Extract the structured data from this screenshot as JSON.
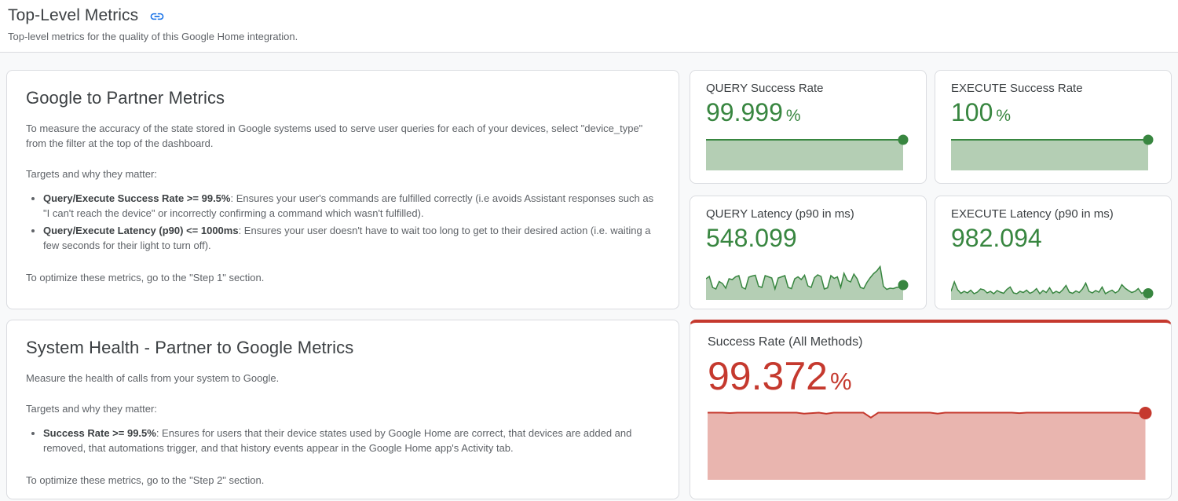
{
  "page": {
    "title": "Top-Level Metrics",
    "subtitle": "Top-level metrics for the quality of this Google Home integration."
  },
  "colors": {
    "green": "#388640",
    "green_fill": "#b4ceb4",
    "red": "#c5392e",
    "red_fill": "#e9b5af",
    "link_blue": "#1a73e8",
    "card_border": "#dadce0",
    "page_background": "#f8f9fa",
    "heading_text": "#3c4043",
    "body_text": "#5f6368"
  },
  "cards": {
    "google_to_partner": {
      "title": "Google to Partner Metrics",
      "intro": "To measure the accuracy of the state stored in Google systems used to serve user queries for each of your devices, select \"device_type\" from the filter at the top of the dashboard.",
      "targets_label": "Targets and why they matter:",
      "bullets": [
        {
          "lead": "Query/Execute Success Rate >= 99.5%",
          "rest": ": Ensures your user's commands are fulfilled correctly (i.e avoids Assistant responses such as \"I can't reach the device\" or incorrectly confirming a command which wasn't fulfilled)."
        },
        {
          "lead": "Query/Execute Latency (p90) <= 1000ms",
          "rest": ": Ensures your user doesn't have to wait too long to get to their desired action (i.e. waiting a few seconds for their light to turn off)."
        }
      ],
      "footer": "To optimize these metrics, go to the \"Step 1\" section."
    },
    "system_health": {
      "title": "System Health - Partner to Google Metrics",
      "intro": "Measure the health of calls from your system to Google.",
      "targets_label": "Targets and why they matter:",
      "bullets": [
        {
          "lead": "Success Rate >= 99.5%",
          "rest": ": Ensures for users that their device states used by Google Home are correct, that devices are added and removed, that automations trigger, and that history events appear in the Google Home app's Activity tab."
        }
      ],
      "footer": "To optimize these metrics, go to the \"Step 2\" section."
    }
  },
  "chart_data": [
    {
      "id": "query-success-rate",
      "type": "area",
      "label": "QUERY Success Rate",
      "value": "99.999",
      "suffix": "%",
      "ymin": 0,
      "ymax": 100,
      "line_color": "#388640",
      "fill_color": "#b4ceb4",
      "stroke_width": 2,
      "dot_r": 6.5,
      "values": [
        100,
        100,
        100,
        100,
        100,
        100,
        100,
        100,
        100,
        100,
        100,
        100,
        100,
        100,
        100,
        100,
        100,
        100,
        100,
        100,
        100,
        100,
        100,
        100,
        100
      ]
    },
    {
      "id": "execute-success-rate",
      "type": "area",
      "label": "EXECUTE Success Rate",
      "value": "100",
      "suffix": "%",
      "ymin": 0,
      "ymax": 100,
      "line_color": "#388640",
      "fill_color": "#b4ceb4",
      "stroke_width": 2,
      "dot_r": 6.5,
      "values": [
        100,
        100,
        100,
        100,
        100,
        100,
        100,
        100,
        100,
        100,
        100,
        100,
        100,
        100,
        100,
        100,
        100,
        100,
        100,
        100,
        100,
        100,
        100,
        100,
        100
      ]
    },
    {
      "id": "query-latency-p90",
      "type": "area",
      "label": "QUERY Latency (p90 in ms)",
      "value": "548.099",
      "suffix": "",
      "ymin": 0,
      "ymax": 100,
      "line_color": "#388640",
      "fill_color": "#b4ceb4",
      "stroke_width": 1.5,
      "dot_r": 6.5,
      "values": [
        52,
        58,
        30,
        26,
        45,
        40,
        28,
        52,
        50,
        57,
        60,
        30,
        26,
        56,
        59,
        61,
        33,
        30,
        60,
        57,
        54,
        26,
        54,
        57,
        60,
        30,
        27,
        52,
        57,
        50,
        61,
        34,
        30,
        55,
        62,
        58,
        26,
        29,
        60,
        53,
        57,
        30,
        66,
        48,
        44,
        64,
        52,
        30,
        27,
        43,
        55,
        65,
        72,
        83,
        33,
        25,
        28,
        27,
        30,
        31,
        36
      ]
    },
    {
      "id": "execute-latency-p90",
      "type": "area",
      "label": "EXECUTE Latency (p90 in ms)",
      "value": "982.094",
      "suffix": "",
      "ymin": 0,
      "ymax": 100,
      "line_color": "#388640",
      "fill_color": "#b4ceb4",
      "stroke_width": 1.5,
      "dot_r": 6.5,
      "values": [
        20,
        44,
        24,
        15,
        20,
        16,
        23,
        14,
        18,
        26,
        24,
        16,
        20,
        14,
        22,
        18,
        15,
        25,
        31,
        16,
        14,
        20,
        17,
        23,
        15,
        19,
        27,
        14,
        22,
        17,
        29,
        15,
        20,
        16,
        24,
        35,
        18,
        15,
        21,
        17,
        26,
        41,
        20,
        16,
        22,
        18,
        31,
        14,
        19,
        23,
        16,
        21,
        37,
        28,
        22,
        17,
        20,
        27,
        15,
        18,
        15
      ]
    },
    {
      "id": "success-rate-all-methods",
      "type": "area",
      "label": "Success Rate (All Methods)",
      "value": "99.372",
      "suffix": "%",
      "ymin": 0,
      "ymax": 100,
      "line_color": "#c5392e",
      "fill_color": "#e9b5af",
      "stroke_width": 2,
      "dot_r": 8,
      "values": [
        100,
        100,
        100,
        99.4,
        100,
        100,
        100,
        100,
        100,
        100,
        100,
        100,
        100,
        98.6,
        99.3,
        100,
        98.3,
        100,
        100,
        100,
        100,
        100,
        92.5,
        100,
        100,
        100,
        100,
        100,
        100,
        100,
        100,
        98.5,
        100,
        100,
        100,
        100,
        100,
        100,
        100,
        100,
        100,
        100,
        99.3,
        100,
        100,
        100,
        100,
        100,
        100,
        100,
        100,
        100,
        100,
        100,
        100,
        100,
        100,
        100,
        99.0,
        99.4
      ]
    }
  ]
}
